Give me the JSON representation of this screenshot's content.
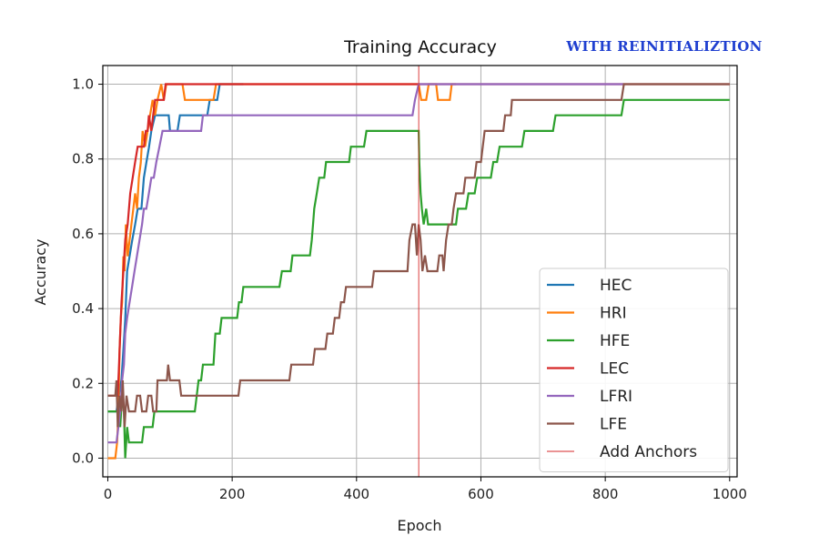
{
  "chart_data": {
    "type": "line",
    "title": "Training Accuracy",
    "annotation": "WITH REINITIALIZTION",
    "xlabel": "Epoch",
    "ylabel": "Accuracy",
    "xlim": [
      -8,
      1012
    ],
    "ylim": [
      -0.05,
      1.05
    ],
    "xticks": [
      0,
      200,
      400,
      600,
      800,
      1000
    ],
    "xtick_labels": [
      "0",
      "200",
      "400",
      "600",
      "800",
      "1000"
    ],
    "yticks": [
      0.0,
      0.2,
      0.4,
      0.6,
      0.8,
      1.0
    ],
    "ytick_labels": [
      "0.0",
      "0.2",
      "0.4",
      "0.6",
      "0.8",
      "1.0"
    ],
    "grid": true,
    "legend_position": "lower-right",
    "vline": {
      "x": 500,
      "name": "Add Anchors",
      "color": "#d62728"
    },
    "series": [
      {
        "name": "HEC",
        "color": "#1f77b4",
        "points": [
          [
            0,
            0.125
          ],
          [
            14,
            0.125
          ],
          [
            18,
            0.17
          ],
          [
            22,
            0.21
          ],
          [
            25,
            0.29
          ],
          [
            28,
            0.37
          ],
          [
            31,
            0.5
          ],
          [
            35,
            0.54
          ],
          [
            39,
            0.58
          ],
          [
            44,
            0.625
          ],
          [
            48,
            0.667
          ],
          [
            54,
            0.667
          ],
          [
            58,
            0.75
          ],
          [
            62,
            0.79
          ],
          [
            66,
            0.83
          ],
          [
            70,
            0.875
          ],
          [
            76,
            0.917
          ],
          [
            98,
            0.917
          ],
          [
            100,
            0.875
          ],
          [
            112,
            0.875
          ],
          [
            116,
            0.917
          ],
          [
            160,
            0.917
          ],
          [
            164,
            0.958
          ],
          [
            176,
            0.958
          ],
          [
            180,
            1.0
          ],
          [
            215,
            1.0
          ],
          [
            218,
            1.0
          ]
        ]
      },
      {
        "name": "HRI",
        "color": "#ff7f0e",
        "points": [
          [
            0,
            0.0
          ],
          [
            12,
            0.0
          ],
          [
            15,
            0.042
          ],
          [
            17,
            0.125
          ],
          [
            19,
            0.29
          ],
          [
            21,
            0.375
          ],
          [
            23,
            0.417
          ],
          [
            25,
            0.54
          ],
          [
            27,
            0.5
          ],
          [
            29,
            0.625
          ],
          [
            32,
            0.54
          ],
          [
            35,
            0.583
          ],
          [
            38,
            0.625
          ],
          [
            41,
            0.667
          ],
          [
            44,
            0.708
          ],
          [
            47,
            0.667
          ],
          [
            50,
            0.75
          ],
          [
            53,
            0.79
          ],
          [
            56,
            0.875
          ],
          [
            60,
            0.833
          ],
          [
            64,
            0.875
          ],
          [
            68,
            0.917
          ],
          [
            72,
            0.958
          ],
          [
            76,
            0.917
          ],
          [
            80,
            0.958
          ],
          [
            86,
            1.0
          ],
          [
            90,
            0.958
          ],
          [
            94,
            1.0
          ],
          [
            120,
            1.0
          ],
          [
            124,
            0.958
          ],
          [
            170,
            0.958
          ],
          [
            174,
            1.0
          ],
          [
            500,
            1.0
          ],
          [
            504,
            0.958
          ],
          [
            512,
            0.958
          ],
          [
            516,
            1.0
          ],
          [
            528,
            1.0
          ],
          [
            531,
            0.958
          ],
          [
            550,
            0.958
          ],
          [
            553,
            1.0
          ],
          [
            560,
            1.0
          ]
        ]
      },
      {
        "name": "HFE",
        "color": "#2ca02c",
        "points": [
          [
            0,
            0.125
          ],
          [
            18,
            0.125
          ],
          [
            20,
            0.083
          ],
          [
            23,
            0.167
          ],
          [
            26,
            0.125
          ],
          [
            28,
            0.0
          ],
          [
            31,
            0.083
          ],
          [
            34,
            0.042
          ],
          [
            55,
            0.042
          ],
          [
            58,
            0.083
          ],
          [
            72,
            0.083
          ],
          [
            75,
            0.125
          ],
          [
            140,
            0.125
          ],
          [
            143,
            0.167
          ],
          [
            146,
            0.208
          ],
          [
            150,
            0.208
          ],
          [
            153,
            0.25
          ],
          [
            170,
            0.25
          ],
          [
            173,
            0.333
          ],
          [
            180,
            0.333
          ],
          [
            183,
            0.375
          ],
          [
            208,
            0.375
          ],
          [
            211,
            0.417
          ],
          [
            215,
            0.417
          ],
          [
            218,
            0.458
          ],
          [
            276,
            0.458
          ],
          [
            280,
            0.5
          ],
          [
            294,
            0.5
          ],
          [
            297,
            0.542
          ],
          [
            325,
            0.542
          ],
          [
            328,
            0.583
          ],
          [
            330,
            0.625
          ],
          [
            332,
            0.667
          ],
          [
            336,
            0.708
          ],
          [
            340,
            0.75
          ],
          [
            348,
            0.75
          ],
          [
            351,
            0.792
          ],
          [
            388,
            0.792
          ],
          [
            391,
            0.833
          ],
          [
            412,
            0.833
          ],
          [
            416,
            0.875
          ],
          [
            500,
            0.875
          ],
          [
            501,
            0.79
          ],
          [
            503,
            0.708
          ],
          [
            505,
            0.667
          ],
          [
            508,
            0.625
          ],
          [
            512,
            0.667
          ],
          [
            515,
            0.625
          ],
          [
            560,
            0.625
          ],
          [
            563,
            0.667
          ],
          [
            576,
            0.667
          ],
          [
            580,
            0.708
          ],
          [
            590,
            0.708
          ],
          [
            594,
            0.75
          ],
          [
            616,
            0.75
          ],
          [
            620,
            0.792
          ],
          [
            626,
            0.792
          ],
          [
            630,
            0.833
          ],
          [
            666,
            0.833
          ],
          [
            670,
            0.875
          ],
          [
            716,
            0.875
          ],
          [
            720,
            0.917
          ],
          [
            826,
            0.917
          ],
          [
            830,
            0.958
          ],
          [
            1000,
            0.958
          ]
        ]
      },
      {
        "name": "LEC",
        "color": "#d62728",
        "points": [
          [
            0,
            0.167
          ],
          [
            16,
            0.167
          ],
          [
            18,
            0.25
          ],
          [
            20,
            0.333
          ],
          [
            22,
            0.417
          ],
          [
            25,
            0.5
          ],
          [
            28,
            0.583
          ],
          [
            32,
            0.625
          ],
          [
            36,
            0.708
          ],
          [
            40,
            0.75
          ],
          [
            44,
            0.792
          ],
          [
            48,
            0.833
          ],
          [
            58,
            0.833
          ],
          [
            61,
            0.875
          ],
          [
            64,
            0.875
          ],
          [
            66,
            0.917
          ],
          [
            70,
            0.875
          ],
          [
            73,
            0.917
          ],
          [
            76,
            0.958
          ],
          [
            90,
            0.958
          ],
          [
            93,
            1.0
          ],
          [
            1000,
            1.0
          ]
        ]
      },
      {
        "name": "LFRI",
        "color": "#9467bd",
        "points": [
          [
            0,
            0.042
          ],
          [
            14,
            0.042
          ],
          [
            17,
            0.083
          ],
          [
            20,
            0.125
          ],
          [
            23,
            0.208
          ],
          [
            26,
            0.25
          ],
          [
            28,
            0.333
          ],
          [
            31,
            0.375
          ],
          [
            35,
            0.417
          ],
          [
            39,
            0.458
          ],
          [
            43,
            0.5
          ],
          [
            47,
            0.542
          ],
          [
            51,
            0.583
          ],
          [
            55,
            0.625
          ],
          [
            58,
            0.667
          ],
          [
            62,
            0.667
          ],
          [
            66,
            0.708
          ],
          [
            70,
            0.75
          ],
          [
            74,
            0.75
          ],
          [
            78,
            0.792
          ],
          [
            83,
            0.833
          ],
          [
            88,
            0.875
          ],
          [
            94,
            0.875
          ],
          [
            98,
            0.875
          ],
          [
            102,
            0.875
          ],
          [
            104,
            0.875
          ],
          [
            150,
            0.875
          ],
          [
            153,
            0.917
          ],
          [
            490,
            0.917
          ],
          [
            494,
            0.958
          ],
          [
            500,
            1.0
          ],
          [
            830,
            1.0
          ]
        ]
      },
      {
        "name": "LFE",
        "color": "#8c564b",
        "points": [
          [
            0,
            0.167
          ],
          [
            12,
            0.167
          ],
          [
            14,
            0.208
          ],
          [
            16,
            0.083
          ],
          [
            19,
            0.167
          ],
          [
            22,
            0.125
          ],
          [
            24,
            0.208
          ],
          [
            27,
            0.083
          ],
          [
            30,
            0.167
          ],
          [
            34,
            0.125
          ],
          [
            44,
            0.125
          ],
          [
            47,
            0.167
          ],
          [
            52,
            0.167
          ],
          [
            55,
            0.125
          ],
          [
            62,
            0.125
          ],
          [
            65,
            0.167
          ],
          [
            70,
            0.167
          ],
          [
            73,
            0.125
          ],
          [
            78,
            0.125
          ],
          [
            80,
            0.208
          ],
          [
            95,
            0.208
          ],
          [
            97,
            0.25
          ],
          [
            100,
            0.208
          ],
          [
            115,
            0.208
          ],
          [
            118,
            0.167
          ],
          [
            210,
            0.167
          ],
          [
            213,
            0.208
          ],
          [
            292,
            0.208
          ],
          [
            295,
            0.25
          ],
          [
            330,
            0.25
          ],
          [
            333,
            0.292
          ],
          [
            350,
            0.292
          ],
          [
            353,
            0.333
          ],
          [
            362,
            0.333
          ],
          [
            365,
            0.375
          ],
          [
            372,
            0.375
          ],
          [
            375,
            0.417
          ],
          [
            380,
            0.417
          ],
          [
            383,
            0.458
          ],
          [
            425,
            0.458
          ],
          [
            428,
            0.5
          ],
          [
            482,
            0.5
          ],
          [
            485,
            0.583
          ],
          [
            490,
            0.625
          ],
          [
            494,
            0.625
          ],
          [
            497,
            0.542
          ],
          [
            500,
            0.625
          ],
          [
            503,
            0.583
          ],
          [
            506,
            0.5
          ],
          [
            510,
            0.542
          ],
          [
            514,
            0.5
          ],
          [
            530,
            0.5
          ],
          [
            533,
            0.542
          ],
          [
            538,
            0.542
          ],
          [
            540,
            0.5
          ],
          [
            544,
            0.583
          ],
          [
            548,
            0.625
          ],
          [
            553,
            0.625
          ],
          [
            556,
            0.667
          ],
          [
            560,
            0.708
          ],
          [
            572,
            0.708
          ],
          [
            575,
            0.75
          ],
          [
            590,
            0.75
          ],
          [
            593,
            0.792
          ],
          [
            600,
            0.792
          ],
          [
            603,
            0.833
          ],
          [
            606,
            0.875
          ],
          [
            636,
            0.875
          ],
          [
            639,
            0.917
          ],
          [
            648,
            0.917
          ],
          [
            650,
            0.958
          ],
          [
            826,
            0.958
          ],
          [
            830,
            1.0
          ],
          [
            1000,
            1.0
          ]
        ]
      }
    ]
  }
}
